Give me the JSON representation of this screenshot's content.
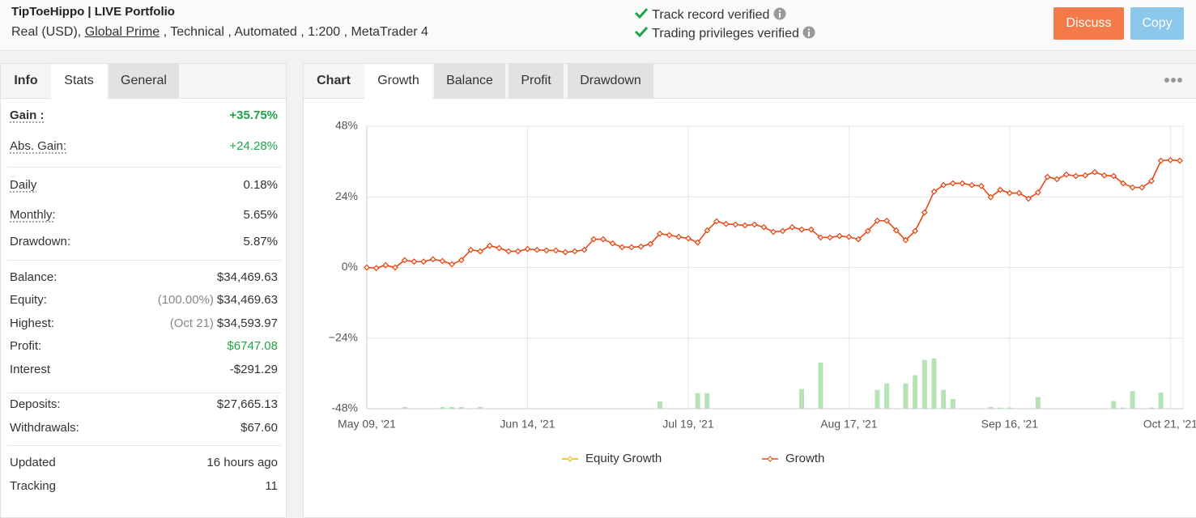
{
  "header": {
    "title": "TipToeHippo | LIVE Portfolio",
    "account": "Real (USD),",
    "broker": "Global Prime",
    "details": ", Technical , Automated , 1:200 , MetaTrader 4"
  },
  "verified": [
    "Track record verified",
    "Trading privileges verified"
  ],
  "buttons": [
    "Discuss",
    "Copy"
  ],
  "left_tabs": [
    "Info",
    "Stats",
    "General"
  ],
  "stats": [
    [
      {
        "label": "Gain :",
        "value": "+35.75%",
        "color": "#1ea446",
        "bold": true,
        "underline": true
      },
      {
        "label": "Abs. Gain:",
        "value": "+24.28%",
        "color": "#1ea446",
        "underline": true
      }
    ],
    [
      {
        "label": "Daily",
        "value": "0.18%",
        "underline": true
      },
      {
        "label": "Monthly:",
        "value": "5.65%",
        "underline": true
      },
      {
        "label": "Drawdown:",
        "value": "5.87%"
      }
    ],
    [
      {
        "label": "Balance:",
        "value": "$34,469.63"
      },
      {
        "label": "Equity:",
        "note": "(100.00%)",
        "value": "$34,469.63"
      },
      {
        "label": "Highest:",
        "note": "(Oct 21)",
        "value": "$34,593.97"
      },
      {
        "label": "Profit:",
        "value": "$6747.08",
        "color": "#1ea446"
      },
      {
        "label": "Interest",
        "value": "-$291.29"
      }
    ],
    [
      {
        "label": "Deposits:",
        "value": "$27,665.13"
      },
      {
        "label": "Withdrawals:",
        "value": "$67.60"
      }
    ],
    [
      {
        "label": "Updated",
        "value": "16 hours ago"
      },
      {
        "label": "Tracking",
        "value": "11"
      }
    ]
  ],
  "chart_tabs": [
    "Chart",
    "Growth",
    "Balance",
    "Profit",
    "Drawdown"
  ],
  "chart_data": {
    "type": "line",
    "categories": [
      "May 09, '21",
      null,
      null,
      null,
      null,
      null,
      null,
      null,
      null,
      null,
      null,
      null,
      null,
      null,
      null,
      null,
      null,
      "Jun 14, '21",
      null,
      null,
      null,
      null,
      null,
      null,
      null,
      null,
      null,
      null,
      null,
      null,
      null,
      null,
      null,
      null,
      "Jul 19, '21",
      null,
      null,
      null,
      null,
      null,
      null,
      null,
      null,
      null,
      null,
      null,
      null,
      null,
      null,
      null,
      null,
      "Aug 17, '21",
      null,
      null,
      null,
      null,
      null,
      null,
      null,
      null,
      null,
      null,
      null,
      null,
      null,
      null,
      null,
      null,
      "Sep 16, '21",
      null,
      null,
      null,
      null,
      null,
      null,
      null,
      null,
      null,
      null,
      null,
      null,
      null,
      null,
      null,
      null,
      "Oct 21, '21",
      null
    ],
    "ylim": [
      -48,
      48
    ],
    "yticks": [
      {
        "value": -48,
        "label": "-48%"
      },
      {
        "value": -24,
        "label": "−24%"
      },
      {
        "value": 0,
        "label": "0%"
      },
      {
        "value": 24,
        "label": "24%"
      },
      {
        "value": 48,
        "label": "48%"
      }
    ],
    "grid": true,
    "series": [
      {
        "name": "Equity Growth",
        "color": "#f0b400",
        "values": [
          0,
          -0.2,
          0.8,
          0,
          2.5,
          2,
          2,
          2.8,
          2.2,
          1.1,
          2.5,
          6,
          5.5,
          7.4,
          6.6,
          5.5,
          5.5,
          6.3,
          6,
          5.8,
          5.8,
          5.2,
          5.5,
          6,
          9.6,
          9.6,
          8.2,
          6.9,
          6.9,
          7.1,
          8,
          11.5,
          11,
          10.4,
          9.9,
          8.5,
          12.6,
          15.7,
          14.8,
          14.6,
          14.3,
          14.6,
          13.7,
          12.1,
          12.4,
          13.7,
          12.9,
          12.9,
          10.2,
          10.2,
          10.7,
          10.4,
          9.6,
          12.4,
          15.9,
          15.9,
          12.6,
          9.3,
          12.4,
          18.7,
          25.8,
          28,
          28.6,
          28.6,
          28,
          27.7,
          23.9,
          26.4,
          25.3,
          25.3,
          23.4,
          25.5,
          30.8,
          30,
          31.6,
          31.1,
          31.3,
          32.4,
          31.3,
          31.1,
          28.6,
          27.2,
          27.2,
          29.4,
          36.3,
          36.5,
          36.3
        ]
      },
      {
        "name": "Growth",
        "color": "#e8461e",
        "values": [
          0,
          -0.2,
          0.8,
          0,
          2.5,
          2,
          2,
          2.8,
          2.2,
          1.1,
          2.5,
          6,
          5.5,
          7.4,
          6.6,
          5.5,
          5.5,
          6.3,
          6,
          5.8,
          5.8,
          5.2,
          5.5,
          6,
          9.6,
          9.6,
          8.2,
          6.9,
          6.9,
          7.1,
          8,
          11.5,
          11,
          10.4,
          9.9,
          8.5,
          12.6,
          15.7,
          14.8,
          14.6,
          14.3,
          14.6,
          13.7,
          12.1,
          12.4,
          13.7,
          12.9,
          12.9,
          10.2,
          10.2,
          10.7,
          10.4,
          9.6,
          12.4,
          15.9,
          15.9,
          12.6,
          9.3,
          12.4,
          18.7,
          25.8,
          28,
          28.6,
          28.6,
          28,
          27.7,
          23.9,
          26.4,
          25.3,
          25.3,
          23.4,
          25.5,
          30.8,
          30,
          31.6,
          31.1,
          31.3,
          32.4,
          31.3,
          31.1,
          28.6,
          27.2,
          27.2,
          29.4,
          36.3,
          36.5,
          36.3
        ]
      },
      {
        "type": "bar",
        "color": "#b6e2b6",
        "values": [
          null,
          null,
          null,
          null,
          -47.4,
          null,
          null,
          null,
          -47.4,
          -47.4,
          -47.4,
          null,
          -47.4,
          null,
          null,
          null,
          null,
          null,
          null,
          null,
          null,
          null,
          null,
          null,
          null,
          null,
          null,
          null,
          null,
          null,
          null,
          -45.5,
          null,
          null,
          null,
          -42.7,
          -42.7,
          null,
          null,
          null,
          null,
          null,
          null,
          null,
          null,
          null,
          -41.3,
          null,
          -32.3,
          null,
          null,
          null,
          null,
          null,
          -41.6,
          -39.4,
          null,
          -39.4,
          -36.6,
          -31.4,
          -30.9,
          -41.6,
          -44.7,
          null,
          null,
          null,
          -47.4,
          -47.6,
          -47.6,
          null,
          null,
          -44,
          null,
          null,
          null,
          null,
          null,
          null,
          null,
          -45.4,
          -47.6,
          -42,
          null,
          -47.6,
          -42.5,
          null,
          null
        ]
      }
    ]
  }
}
